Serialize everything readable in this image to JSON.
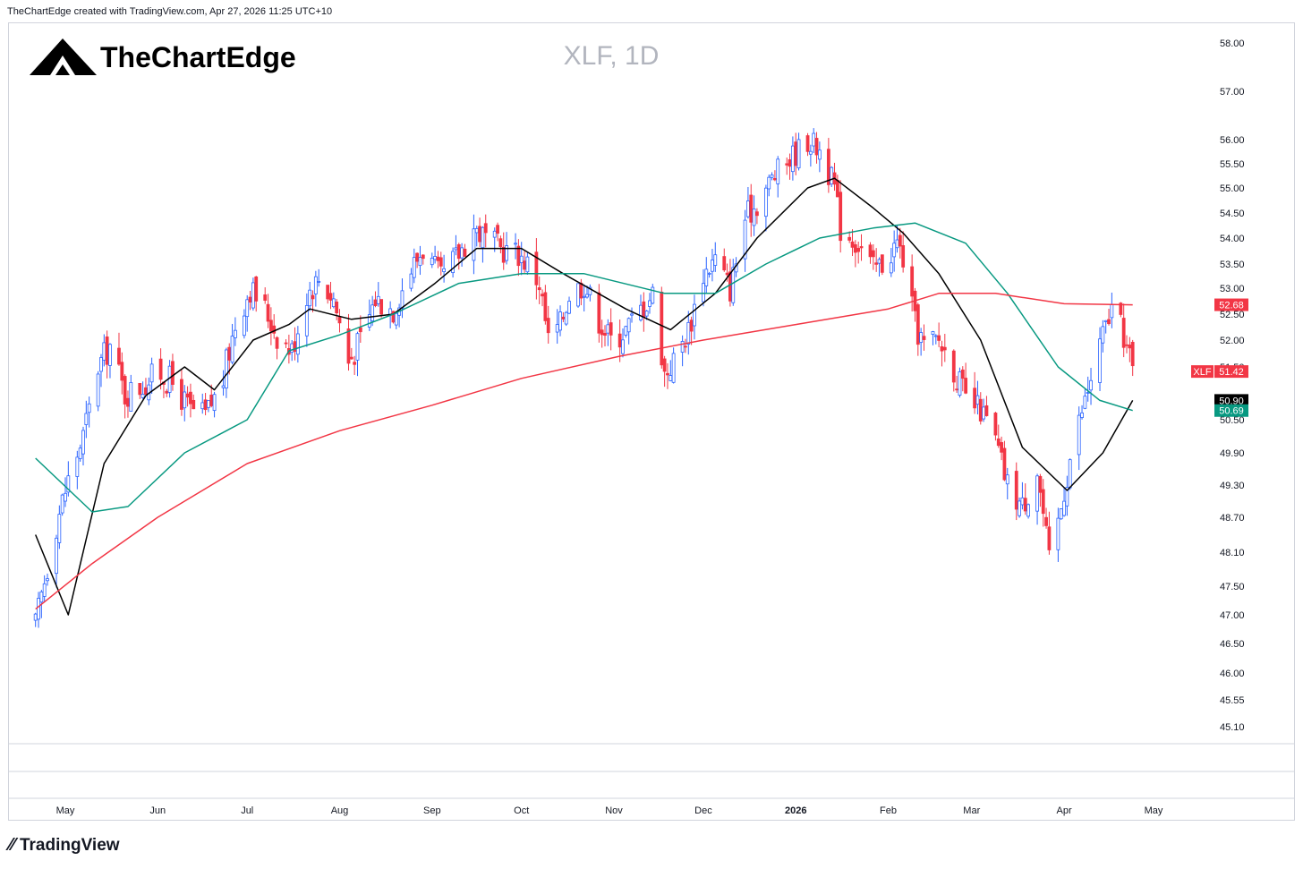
{
  "header": {
    "credit": "TheChartEdge created with TradingView.com, Apr 27, 2026 11:25 UTC+10"
  },
  "branding": {
    "name": "TheChartEdge",
    "footer": "TradingView"
  },
  "colors": {
    "up": "#2962ff",
    "down": "#f23645",
    "ma_black": "#000000",
    "ma_teal": "#089981",
    "ma_red": "#f23645"
  },
  "chart_data": {
    "type": "candlestick",
    "title": "XLF, 1D",
    "ylim": [
      44.9,
      58.3
    ],
    "y_ticks": [
      "58.00",
      "57.00",
      "56.00",
      "55.50",
      "55.00",
      "54.50",
      "54.00",
      "53.50",
      "53.00",
      "52.50",
      "52.00",
      "51.50",
      "50.50",
      "49.90",
      "49.30",
      "48.70",
      "48.10",
      "47.50",
      "47.00",
      "46.50",
      "46.00",
      "45.55",
      "45.10"
    ],
    "x_ticks": [
      {
        "label": "May",
        "bold": false
      },
      {
        "label": "Jun",
        "bold": false
      },
      {
        "label": "Jul",
        "bold": false
      },
      {
        "label": "Aug",
        "bold": false
      },
      {
        "label": "Sep",
        "bold": false
      },
      {
        "label": "Oct",
        "bold": false
      },
      {
        "label": "Nov",
        "bold": false
      },
      {
        "label": "Dec",
        "bold": false
      },
      {
        "label": "2026",
        "bold": true
      },
      {
        "label": "Feb",
        "bold": false
      },
      {
        "label": "Mar",
        "bold": false
      },
      {
        "label": "Apr",
        "bold": false
      },
      {
        "label": "May",
        "bold": false
      }
    ],
    "price_labels": [
      {
        "symbol": "XLF",
        "value": "51.42",
        "color": "#f23645"
      },
      {
        "value": "52.68",
        "color": "#f23645"
      },
      {
        "value": "50.90",
        "color": "#000000"
      },
      {
        "value": "50.69",
        "color": "#089981"
      }
    ],
    "close_path": [
      [
        "2025-04-21",
        46.8
      ],
      [
        "2025-04-24",
        47.6
      ],
      [
        "2025-04-28",
        48.6
      ],
      [
        "2025-05-02",
        49.4
      ],
      [
        "2025-05-07",
        50.2
      ],
      [
        "2025-05-12",
        51.5
      ],
      [
        "2025-05-16",
        51.9
      ],
      [
        "2025-05-21",
        51.0
      ],
      [
        "2025-05-27",
        51.2
      ],
      [
        "2025-06-02",
        51.4
      ],
      [
        "2025-06-06",
        51.2
      ],
      [
        "2025-06-12",
        50.7
      ],
      [
        "2025-06-17",
        50.6
      ],
      [
        "2025-06-23",
        51.3
      ],
      [
        "2025-06-27",
        52.3
      ],
      [
        "2025-07-02",
        53.0
      ],
      [
        "2025-07-07",
        52.6
      ],
      [
        "2025-07-11",
        52.1
      ],
      [
        "2025-07-16",
        51.8
      ],
      [
        "2025-07-21",
        52.9
      ],
      [
        "2025-07-25",
        53.2
      ],
      [
        "2025-07-30",
        52.8
      ],
      [
        "2025-08-04",
        51.6
      ],
      [
        "2025-08-08",
        52.0
      ],
      [
        "2025-08-13",
        52.8
      ],
      [
        "2025-08-19",
        52.6
      ],
      [
        "2025-08-25",
        53.4
      ],
      [
        "2025-08-29",
        53.8
      ],
      [
        "2025-09-04",
        53.2
      ],
      [
        "2025-09-10",
        53.7
      ],
      [
        "2025-09-15",
        54.2
      ],
      [
        "2025-09-19",
        54.0
      ],
      [
        "2025-09-24",
        53.8
      ],
      [
        "2025-09-30",
        53.7
      ],
      [
        "2025-10-03",
        53.5
      ],
      [
        "2025-10-07",
        53.1
      ],
      [
        "2025-10-10",
        52.0
      ],
      [
        "2025-10-14",
        52.3
      ],
      [
        "2025-10-17",
        52.9
      ],
      [
        "2025-10-22",
        53.1
      ],
      [
        "2025-10-27",
        52.4
      ],
      [
        "2025-10-31",
        52.0
      ],
      [
        "2025-11-05",
        52.2
      ],
      [
        "2025-11-10",
        52.6
      ],
      [
        "2025-11-14",
        52.9
      ],
      [
        "2025-11-18",
        51.4
      ],
      [
        "2025-11-21",
        51.6
      ],
      [
        "2025-11-26",
        52.2
      ],
      [
        "2025-12-01",
        53.3
      ],
      [
        "2025-12-05",
        53.6
      ],
      [
        "2025-12-10",
        53.0
      ],
      [
        "2025-12-15",
        54.4
      ],
      [
        "2025-12-19",
        54.7
      ],
      [
        "2025-12-24",
        55.2
      ],
      [
        "2025-12-30",
        55.6
      ],
      [
        "2026-01-05",
        56.0
      ],
      [
        "2026-01-09",
        55.8
      ],
      [
        "2026-01-14",
        55.0
      ],
      [
        "2026-01-16",
        54.2
      ],
      [
        "2026-01-22",
        53.9
      ],
      [
        "2026-01-27",
        53.4
      ],
      [
        "2026-01-30",
        53.5
      ],
      [
        "2026-02-04",
        53.9
      ],
      [
        "2026-02-06",
        53.6
      ],
      [
        "2026-02-10",
        52.3
      ],
      [
        "2026-02-13",
        51.9
      ],
      [
        "2026-02-18",
        52.0
      ],
      [
        "2026-02-23",
        51.5
      ],
      [
        "2026-02-27",
        50.9
      ],
      [
        "2026-03-04",
        50.7
      ],
      [
        "2026-03-09",
        50.1
      ],
      [
        "2026-03-13",
        49.3
      ],
      [
        "2026-03-18",
        48.9
      ],
      [
        "2026-03-23",
        49.6
      ],
      [
        "2026-03-27",
        47.9
      ],
      [
        "2026-03-30",
        48.6
      ],
      [
        "2026-04-03",
        49.8
      ],
      [
        "2026-04-08",
        50.9
      ],
      [
        "2026-04-13",
        51.9
      ],
      [
        "2026-04-17",
        52.6
      ],
      [
        "2026-04-21",
        52.1
      ],
      [
        "2026-04-24",
        51.42
      ]
    ],
    "series": [
      {
        "name": "MA black",
        "color": "#000000",
        "points": [
          [
            "2025-04-21",
            48.4
          ],
          [
            "2025-05-02",
            47.0
          ],
          [
            "2025-05-14",
            49.7
          ],
          [
            "2025-05-28",
            51.0
          ],
          [
            "2025-06-10",
            51.5
          ],
          [
            "2025-06-20",
            51.1
          ],
          [
            "2025-07-03",
            52.0
          ],
          [
            "2025-07-15",
            52.3
          ],
          [
            "2025-07-22",
            52.6
          ],
          [
            "2025-08-05",
            52.4
          ],
          [
            "2025-08-19",
            52.5
          ],
          [
            "2025-09-02",
            53.1
          ],
          [
            "2025-09-16",
            53.8
          ],
          [
            "2025-10-01",
            53.8
          ],
          [
            "2025-10-15",
            53.3
          ],
          [
            "2025-11-05",
            52.6
          ],
          [
            "2025-11-20",
            52.2
          ],
          [
            "2025-12-05",
            52.9
          ],
          [
            "2025-12-19",
            54.0
          ],
          [
            "2026-01-05",
            55.0
          ],
          [
            "2026-01-14",
            55.2
          ],
          [
            "2026-01-27",
            54.6
          ],
          [
            "2026-02-06",
            54.1
          ],
          [
            "2026-02-18",
            53.3
          ],
          [
            "2026-03-04",
            52.0
          ],
          [
            "2026-03-18",
            50.0
          ],
          [
            "2026-04-02",
            49.2
          ],
          [
            "2026-04-14",
            49.9
          ],
          [
            "2026-04-24",
            50.9
          ]
        ]
      },
      {
        "name": "MA teal",
        "color": "#089981",
        "points": [
          [
            "2025-04-21",
            49.8
          ],
          [
            "2025-05-10",
            48.8
          ],
          [
            "2025-05-22",
            48.9
          ],
          [
            "2025-06-10",
            49.9
          ],
          [
            "2025-07-01",
            50.5
          ],
          [
            "2025-07-15",
            51.8
          ],
          [
            "2025-08-01",
            52.1
          ],
          [
            "2025-08-19",
            52.5
          ],
          [
            "2025-09-10",
            53.1
          ],
          [
            "2025-10-01",
            53.3
          ],
          [
            "2025-10-22",
            53.3
          ],
          [
            "2025-11-18",
            52.9
          ],
          [
            "2025-12-05",
            52.9
          ],
          [
            "2025-12-22",
            53.5
          ],
          [
            "2026-01-09",
            54.0
          ],
          [
            "2026-01-27",
            54.2
          ],
          [
            "2026-02-10",
            54.3
          ],
          [
            "2026-02-27",
            53.9
          ],
          [
            "2026-03-13",
            52.9
          ],
          [
            "2026-03-30",
            51.5
          ],
          [
            "2026-04-13",
            50.9
          ],
          [
            "2026-04-24",
            50.69
          ]
        ]
      },
      {
        "name": "MA red",
        "color": "#f23645",
        "points": [
          [
            "2025-04-21",
            47.1
          ],
          [
            "2025-05-10",
            47.9
          ],
          [
            "2025-06-01",
            48.7
          ],
          [
            "2025-07-01",
            49.7
          ],
          [
            "2025-08-01",
            50.3
          ],
          [
            "2025-09-01",
            50.8
          ],
          [
            "2025-10-01",
            51.3
          ],
          [
            "2025-11-03",
            51.7
          ],
          [
            "2025-12-01",
            52.0
          ],
          [
            "2026-01-01",
            52.3
          ],
          [
            "2026-02-01",
            52.6
          ],
          [
            "2026-02-18",
            52.9
          ],
          [
            "2026-03-09",
            52.9
          ],
          [
            "2026-04-01",
            52.7
          ],
          [
            "2026-04-24",
            52.68
          ]
        ]
      }
    ],
    "grid": false,
    "legend": "none"
  }
}
